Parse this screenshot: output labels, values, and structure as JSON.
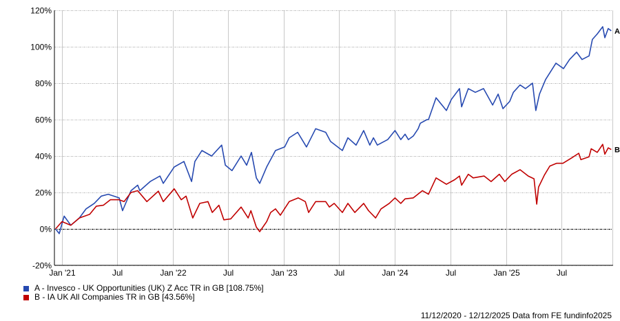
{
  "chart_data": {
    "type": "line",
    "title": "",
    "xlabel": "",
    "ylabel": "",
    "ylim": [
      -20,
      120
    ],
    "yticks": [
      "-20%",
      "0%",
      "20%",
      "40%",
      "60%",
      "80%",
      "100%",
      "120%"
    ],
    "ytick_values": [
      -20,
      0,
      20,
      40,
      60,
      80,
      100,
      120
    ],
    "xticks": [
      {
        "label": "Jan '21",
        "date": "2021-01-01"
      },
      {
        "label": "Jul",
        "date": "2021-07-01"
      },
      {
        "label": "Jan '22",
        "date": "2022-01-01"
      },
      {
        "label": "Jul",
        "date": "2022-07-01"
      },
      {
        "label": "Jan '23",
        "date": "2023-01-01"
      },
      {
        "label": "Jul",
        "date": "2023-07-01"
      },
      {
        "label": "Jan '24",
        "date": "2024-01-01"
      },
      {
        "label": "Jul",
        "date": "2024-07-01"
      },
      {
        "label": "Jan '25",
        "date": "2025-01-01"
      },
      {
        "label": "Jul",
        "date": "2025-07-01"
      }
    ],
    "xlim": [
      "2020-12-11",
      "2025-12-12"
    ],
    "grid": true,
    "legend_placement": "bottom-left",
    "series": [
      {
        "name": "A - Invesco - UK Opportunities (UK) Z Acc TR in GB [108.75%]",
        "end_label": "A",
        "color": "#2649b0",
        "points": [
          [
            "2020-12-11",
            0
          ],
          [
            "2020-12-23",
            -2.6
          ],
          [
            "2021-01-08",
            7
          ],
          [
            "2021-01-30",
            2
          ],
          [
            "2021-02-27",
            6
          ],
          [
            "2021-03-21",
            11
          ],
          [
            "2021-04-17",
            14
          ],
          [
            "2021-05-10",
            18
          ],
          [
            "2021-06-02",
            19
          ],
          [
            "2021-07-08",
            17
          ],
          [
            "2021-07-19",
            10
          ],
          [
            "2021-08-16",
            21
          ],
          [
            "2021-09-07",
            24
          ],
          [
            "2021-09-14",
            21
          ],
          [
            "2021-10-18",
            26
          ],
          [
            "2021-11-19",
            29
          ],
          [
            "2021-11-30",
            25
          ],
          [
            "2022-01-05",
            34
          ],
          [
            "2022-02-06",
            37
          ],
          [
            "2022-03-03",
            26
          ],
          [
            "2022-03-14",
            37
          ],
          [
            "2022-04-06",
            43
          ],
          [
            "2022-05-08",
            40
          ],
          [
            "2022-06-10",
            46
          ],
          [
            "2022-06-22",
            35
          ],
          [
            "2022-07-14",
            32
          ],
          [
            "2022-08-13",
            40
          ],
          [
            "2022-08-31",
            35
          ],
          [
            "2022-09-16",
            42
          ],
          [
            "2022-10-02",
            28
          ],
          [
            "2022-10-13",
            25
          ],
          [
            "2022-11-05",
            34
          ],
          [
            "2022-12-04",
            43
          ],
          [
            "2023-01-03",
            45
          ],
          [
            "2023-01-18",
            50
          ],
          [
            "2023-02-15",
            53
          ],
          [
            "2023-03-16",
            45
          ],
          [
            "2023-04-15",
            55
          ],
          [
            "2023-05-18",
            53
          ],
          [
            "2023-06-03",
            48
          ],
          [
            "2023-07-12",
            43
          ],
          [
            "2023-07-30",
            50
          ],
          [
            "2023-08-26",
            46
          ],
          [
            "2023-09-20",
            54
          ],
          [
            "2023-10-10",
            46
          ],
          [
            "2023-10-22",
            50
          ],
          [
            "2023-11-04",
            46
          ],
          [
            "2023-12-08",
            49
          ],
          [
            "2024-01-01",
            54
          ],
          [
            "2024-01-20",
            49
          ],
          [
            "2024-02-03",
            52
          ],
          [
            "2024-02-14",
            49
          ],
          [
            "2024-03-01",
            51
          ],
          [
            "2024-03-17",
            55
          ],
          [
            "2024-03-24",
            58
          ],
          [
            "2024-04-15",
            60
          ],
          [
            "2024-04-20",
            60
          ],
          [
            "2024-05-15",
            72
          ],
          [
            "2024-06-18",
            65
          ],
          [
            "2024-07-04",
            71
          ],
          [
            "2024-07-31",
            77
          ],
          [
            "2024-08-07",
            67
          ],
          [
            "2024-08-29",
            77
          ],
          [
            "2024-09-21",
            75
          ],
          [
            "2024-10-18",
            77
          ],
          [
            "2024-11-17",
            68
          ],
          [
            "2024-12-05",
            74
          ],
          [
            "2024-12-21",
            66
          ],
          [
            "2025-01-12",
            70
          ],
          [
            "2025-01-24",
            75
          ],
          [
            "2025-02-15",
            79
          ],
          [
            "2025-03-05",
            77
          ],
          [
            "2025-03-28",
            80
          ],
          [
            "2025-04-08",
            65
          ],
          [
            "2025-04-20",
            74
          ],
          [
            "2025-05-10",
            82
          ],
          [
            "2025-06-13",
            91
          ],
          [
            "2025-07-08",
            88
          ],
          [
            "2025-07-28",
            93
          ],
          [
            "2025-08-20",
            97
          ],
          [
            "2025-09-07",
            93
          ],
          [
            "2025-09-30",
            95
          ],
          [
            "2025-10-11",
            104
          ],
          [
            "2025-10-27",
            107
          ],
          [
            "2025-11-14",
            111
          ],
          [
            "2025-11-21",
            105
          ],
          [
            "2025-12-02",
            110
          ],
          [
            "2025-12-12",
            108.75
          ]
        ]
      },
      {
        "name": "B - IA UK All Companies TR in GB [43.56%]",
        "end_label": "B",
        "color": "#c00000",
        "points": [
          [
            "2020-12-11",
            0
          ],
          [
            "2021-01-01",
            4
          ],
          [
            "2021-01-30",
            2
          ],
          [
            "2021-02-27",
            6
          ],
          [
            "2021-04-02",
            8
          ],
          [
            "2021-04-24",
            12.5
          ],
          [
            "2021-05-17",
            13
          ],
          [
            "2021-06-09",
            16
          ],
          [
            "2021-07-08",
            16
          ],
          [
            "2021-07-24",
            15
          ],
          [
            "2021-08-16",
            20
          ],
          [
            "2021-09-07",
            21
          ],
          [
            "2021-10-07",
            15
          ],
          [
            "2021-11-14",
            20.7
          ],
          [
            "2021-11-30",
            15
          ],
          [
            "2022-01-05",
            22
          ],
          [
            "2022-01-28",
            16
          ],
          [
            "2022-02-13",
            18
          ],
          [
            "2022-03-07",
            6
          ],
          [
            "2022-03-30",
            14
          ],
          [
            "2022-04-26",
            15
          ],
          [
            "2022-05-10",
            9
          ],
          [
            "2022-06-01",
            13
          ],
          [
            "2022-06-17",
            5
          ],
          [
            "2022-07-10",
            5.5
          ],
          [
            "2022-08-13",
            12
          ],
          [
            "2022-09-05",
            6
          ],
          [
            "2022-09-14",
            10
          ],
          [
            "2022-10-02",
            1
          ],
          [
            "2022-10-13",
            -1.5
          ],
          [
            "2022-11-05",
            4
          ],
          [
            "2022-11-18",
            9
          ],
          [
            "2022-12-04",
            11
          ],
          [
            "2022-12-20",
            7.5
          ],
          [
            "2023-01-18",
            15
          ],
          [
            "2023-02-17",
            17
          ],
          [
            "2023-03-12",
            15
          ],
          [
            "2023-03-23",
            9
          ],
          [
            "2023-04-15",
            15
          ],
          [
            "2023-05-18",
            15
          ],
          [
            "2023-05-30",
            12
          ],
          [
            "2023-06-15",
            14
          ],
          [
            "2023-07-12",
            9
          ],
          [
            "2023-07-30",
            14
          ],
          [
            "2023-08-22",
            9
          ],
          [
            "2023-09-20",
            14
          ],
          [
            "2023-10-06",
            10
          ],
          [
            "2023-10-29",
            6
          ],
          [
            "2023-11-16",
            11
          ],
          [
            "2023-12-13",
            14
          ],
          [
            "2024-01-01",
            17
          ],
          [
            "2024-01-20",
            14
          ],
          [
            "2024-02-03",
            16.5
          ],
          [
            "2024-03-01",
            17
          ],
          [
            "2024-03-31",
            21
          ],
          [
            "2024-04-20",
            19
          ],
          [
            "2024-05-15",
            28
          ],
          [
            "2024-06-18",
            24.5
          ],
          [
            "2024-07-15",
            27
          ],
          [
            "2024-07-31",
            29
          ],
          [
            "2024-08-07",
            24
          ],
          [
            "2024-08-29",
            30
          ],
          [
            "2024-09-14",
            28
          ],
          [
            "2024-10-20",
            29
          ],
          [
            "2024-11-12",
            26
          ],
          [
            "2024-12-09",
            30
          ],
          [
            "2024-12-27",
            26
          ],
          [
            "2025-01-19",
            30
          ],
          [
            "2025-02-15",
            32.5
          ],
          [
            "2025-03-14",
            29
          ],
          [
            "2025-04-02",
            27.5
          ],
          [
            "2025-04-11",
            13.6
          ],
          [
            "2025-04-17",
            23
          ],
          [
            "2025-05-06",
            29.5
          ],
          [
            "2025-05-24",
            34.5
          ],
          [
            "2025-06-15",
            36
          ],
          [
            "2025-07-06",
            36
          ],
          [
            "2025-08-04",
            39
          ],
          [
            "2025-08-27",
            41.5
          ],
          [
            "2025-09-03",
            38
          ],
          [
            "2025-09-30",
            39.6
          ],
          [
            "2025-10-07",
            44
          ],
          [
            "2025-10-27",
            42
          ],
          [
            "2025-11-14",
            46.4
          ],
          [
            "2025-11-21",
            41
          ],
          [
            "2025-12-02",
            44.5
          ],
          [
            "2025-12-12",
            43.56
          ]
        ]
      }
    ]
  },
  "legend": [
    {
      "label": "A - Invesco - UK Opportunities (UK) Z Acc TR in GB [108.75%]",
      "color": "#2649b0"
    },
    {
      "label": "B - IA UK All Companies TR in GB [43.56%]",
      "color": "#c00000"
    }
  ],
  "footer": "11/12/2020 - 12/12/2025 Data from FE fundinfo2025"
}
